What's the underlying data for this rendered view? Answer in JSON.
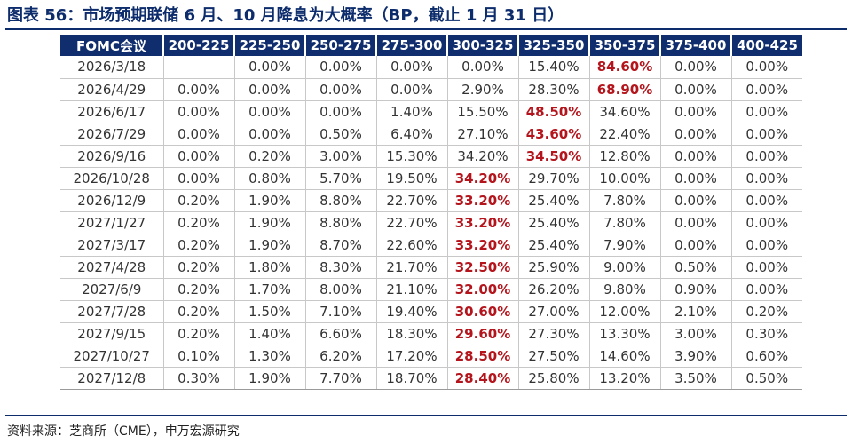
{
  "title": "图表 56：市场预期联储 6 月、10 月降息为大概率（BP，截止 1 月 31 日）",
  "source": "资料来源：芝商所（CME），申万宏源研究",
  "highlight_color": "#b4151c",
  "header_color": "#102e6e",
  "chart_data": {
    "type": "table",
    "columns": [
      "FOMC会议",
      "200-225",
      "225-250",
      "250-275",
      "275-300",
      "300-325",
      "325-350",
      "350-375",
      "375-400",
      "400-425"
    ],
    "rows": [
      {
        "date": "2026/3/18",
        "values": [
          "",
          "0.00%",
          "0.00%",
          "0.00%",
          "0.00%",
          "15.40%",
          "84.60%",
          "0.00%",
          "0.00%"
        ],
        "max_index": 6
      },
      {
        "date": "2026/4/29",
        "values": [
          "0.00%",
          "0.00%",
          "0.00%",
          "0.00%",
          "2.90%",
          "28.30%",
          "68.90%",
          "0.00%",
          "0.00%"
        ],
        "max_index": 6
      },
      {
        "date": "2026/6/17",
        "values": [
          "0.00%",
          "0.00%",
          "0.00%",
          "1.40%",
          "15.50%",
          "48.50%",
          "34.60%",
          "0.00%",
          "0.00%"
        ],
        "max_index": 5
      },
      {
        "date": "2026/7/29",
        "values": [
          "0.00%",
          "0.00%",
          "0.50%",
          "6.40%",
          "27.10%",
          "43.60%",
          "22.40%",
          "0.00%",
          "0.00%"
        ],
        "max_index": 5
      },
      {
        "date": "2026/9/16",
        "values": [
          "0.00%",
          "0.20%",
          "3.00%",
          "15.30%",
          "34.20%",
          "34.50%",
          "12.80%",
          "0.00%",
          "0.00%"
        ],
        "max_index": 5
      },
      {
        "date": "2026/10/28",
        "values": [
          "0.00%",
          "0.80%",
          "5.70%",
          "19.50%",
          "34.20%",
          "29.70%",
          "10.00%",
          "0.00%",
          "0.00%"
        ],
        "max_index": 4
      },
      {
        "date": "2026/12/9",
        "values": [
          "0.20%",
          "1.90%",
          "8.80%",
          "22.70%",
          "33.20%",
          "25.40%",
          "7.80%",
          "0.00%",
          "0.00%"
        ],
        "max_index": 4
      },
      {
        "date": "2027/1/27",
        "values": [
          "0.20%",
          "1.90%",
          "8.80%",
          "22.70%",
          "33.20%",
          "25.40%",
          "7.80%",
          "0.00%",
          "0.00%"
        ],
        "max_index": 4
      },
      {
        "date": "2027/3/17",
        "values": [
          "0.20%",
          "1.90%",
          "8.70%",
          "22.60%",
          "33.20%",
          "25.40%",
          "7.90%",
          "0.00%",
          "0.00%"
        ],
        "max_index": 4
      },
      {
        "date": "2027/4/28",
        "values": [
          "0.20%",
          "1.80%",
          "8.30%",
          "21.70%",
          "32.50%",
          "25.90%",
          "9.00%",
          "0.50%",
          "0.00%"
        ],
        "max_index": 4
      },
      {
        "date": "2027/6/9",
        "values": [
          "0.20%",
          "1.70%",
          "8.00%",
          "21.10%",
          "32.00%",
          "26.20%",
          "9.80%",
          "0.90%",
          "0.00%"
        ],
        "max_index": 4
      },
      {
        "date": "2027/7/28",
        "values": [
          "0.20%",
          "1.50%",
          "7.10%",
          "19.40%",
          "30.60%",
          "27.00%",
          "12.00%",
          "2.10%",
          "0.20%"
        ],
        "max_index": 4
      },
      {
        "date": "2027/9/15",
        "values": [
          "0.20%",
          "1.40%",
          "6.60%",
          "18.30%",
          "29.60%",
          "27.30%",
          "13.30%",
          "3.00%",
          "0.30%"
        ],
        "max_index": 4
      },
      {
        "date": "2027/10/27",
        "values": [
          "0.10%",
          "1.30%",
          "6.20%",
          "17.20%",
          "28.50%",
          "27.50%",
          "14.60%",
          "3.90%",
          "0.60%"
        ],
        "max_index": 4
      },
      {
        "date": "2027/12/8",
        "values": [
          "0.30%",
          "1.90%",
          "7.70%",
          "18.70%",
          "28.40%",
          "25.80%",
          "13.20%",
          "3.50%",
          "0.50%"
        ],
        "max_index": 4
      }
    ]
  }
}
